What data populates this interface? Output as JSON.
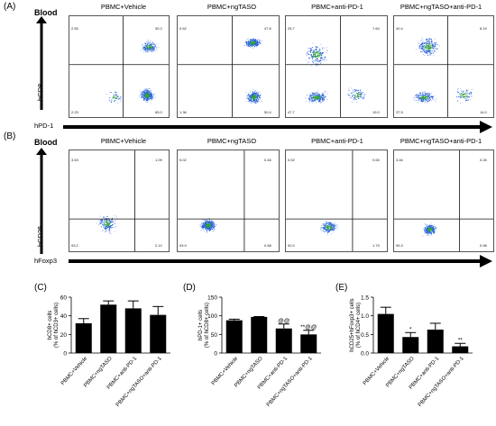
{
  "panelA": {
    "letter": "(A)",
    "tissue": "Blood",
    "yaxis": "hCD8",
    "xaxis": "hPD-1",
    "conditions": [
      "PBMC+Vehicle",
      "PBMC+ngTASO",
      "PBMC+anti-PD-1",
      "PBMC+ngTASO+anti-PD-1"
    ],
    "quadrants": [
      {
        "ul": "2.55",
        "ur": "30.2",
        "ll": "2.29",
        "lr": "65.0"
      },
      {
        "ul": "0.62",
        "ur": "47.6",
        "ll": "1.36",
        "lr": "50.4"
      },
      {
        "ul": "25.7",
        "ur": "7.64",
        "ll": "47.7",
        "lr": "19.0"
      },
      {
        "ul": "40.4",
        "ur": "8.19",
        "ll": "37.5",
        "lr": "14.0"
      }
    ]
  },
  "panelB": {
    "letter": "(B)",
    "tissue": "Blood",
    "yaxis": "hCD25",
    "xaxis": "hFoxp3",
    "conditions": [
      "PBMC+Vehicle",
      "PBMC+ngTASO",
      "PBMC+anti-PD-1",
      "PBMC+ngTASO+anti-PD-1"
    ],
    "quadrants": [
      {
        "ul": "3.63",
        "ur": "1.09",
        "ll": "93.2",
        "lr": "2.12"
      },
      {
        "ul": "5.02",
        "ur": "0.46",
        "ll": "93.9",
        "lr": "0.58"
      },
      {
        "ul": "0.52",
        "ur": "0.65",
        "ll": "92.0",
        "lr": "1.79"
      },
      {
        "ul": "3.46",
        "ur": "0.26",
        "ll": "95.3",
        "lr": "0.98"
      }
    ]
  },
  "chart_data": [
    {
      "type": "bar",
      "letter": "(C)",
      "categories": [
        "PBMC+Vehicle",
        "PBMC+ngTASO",
        "PBMC+anti-PD-1",
        "PBMC+ngTASO+anti-PD-1"
      ],
      "values": [
        32,
        52,
        48,
        41
      ],
      "errors": [
        5,
        4,
        8,
        9
      ],
      "annotations": [
        "",
        "",
        "",
        ""
      ],
      "ylabel": [
        "hCD8+ cells",
        "(% of hCD3+ cells)"
      ],
      "ylim": [
        0,
        60
      ],
      "yticks": [
        0,
        20,
        40,
        60
      ]
    },
    {
      "type": "bar",
      "letter": "(D)",
      "categories": [
        "PBMC+Vehicle",
        "PBMC+ngTASO",
        "PBMC+anti-PD-1",
        "PBMC+ngTASO+anti-PD-1"
      ],
      "values": [
        88,
        97,
        66,
        50
      ],
      "errors": [
        3,
        1,
        12,
        11
      ],
      "annotations": [
        "",
        "",
        "@@",
        "**@@"
      ],
      "ylabel": [
        "hPD-1+ cells",
        "(% of hCD8+ cells)"
      ],
      "ylim": [
        0,
        150
      ],
      "yticks": [
        0,
        50,
        100,
        150
      ]
    },
    {
      "type": "bar",
      "letter": "(E)",
      "categories": [
        "PBMC+Vehicle",
        "PBMC+ngTASO",
        "PBMC+anti-PD-1",
        "PBMC+ngTASO+anti-PD-1"
      ],
      "values": [
        1.05,
        0.43,
        0.63,
        0.18
      ],
      "errors": [
        0.18,
        0.12,
        0.17,
        0.08
      ],
      "annotations": [
        "",
        "*",
        "",
        "**"
      ],
      "ylabel": [
        "hCD25+hFoxp3+ cells",
        "(% of hCD4+ cells)"
      ],
      "ylim": [
        0,
        1.5
      ],
      "yticks": [
        0.0,
        0.5,
        1.0,
        1.5
      ]
    }
  ],
  "colors": {
    "bar": "#000000",
    "dot_hi": "#2e9e3e",
    "dot_mid": "#2b64d9",
    "dot_lo": "#9db8f0"
  }
}
